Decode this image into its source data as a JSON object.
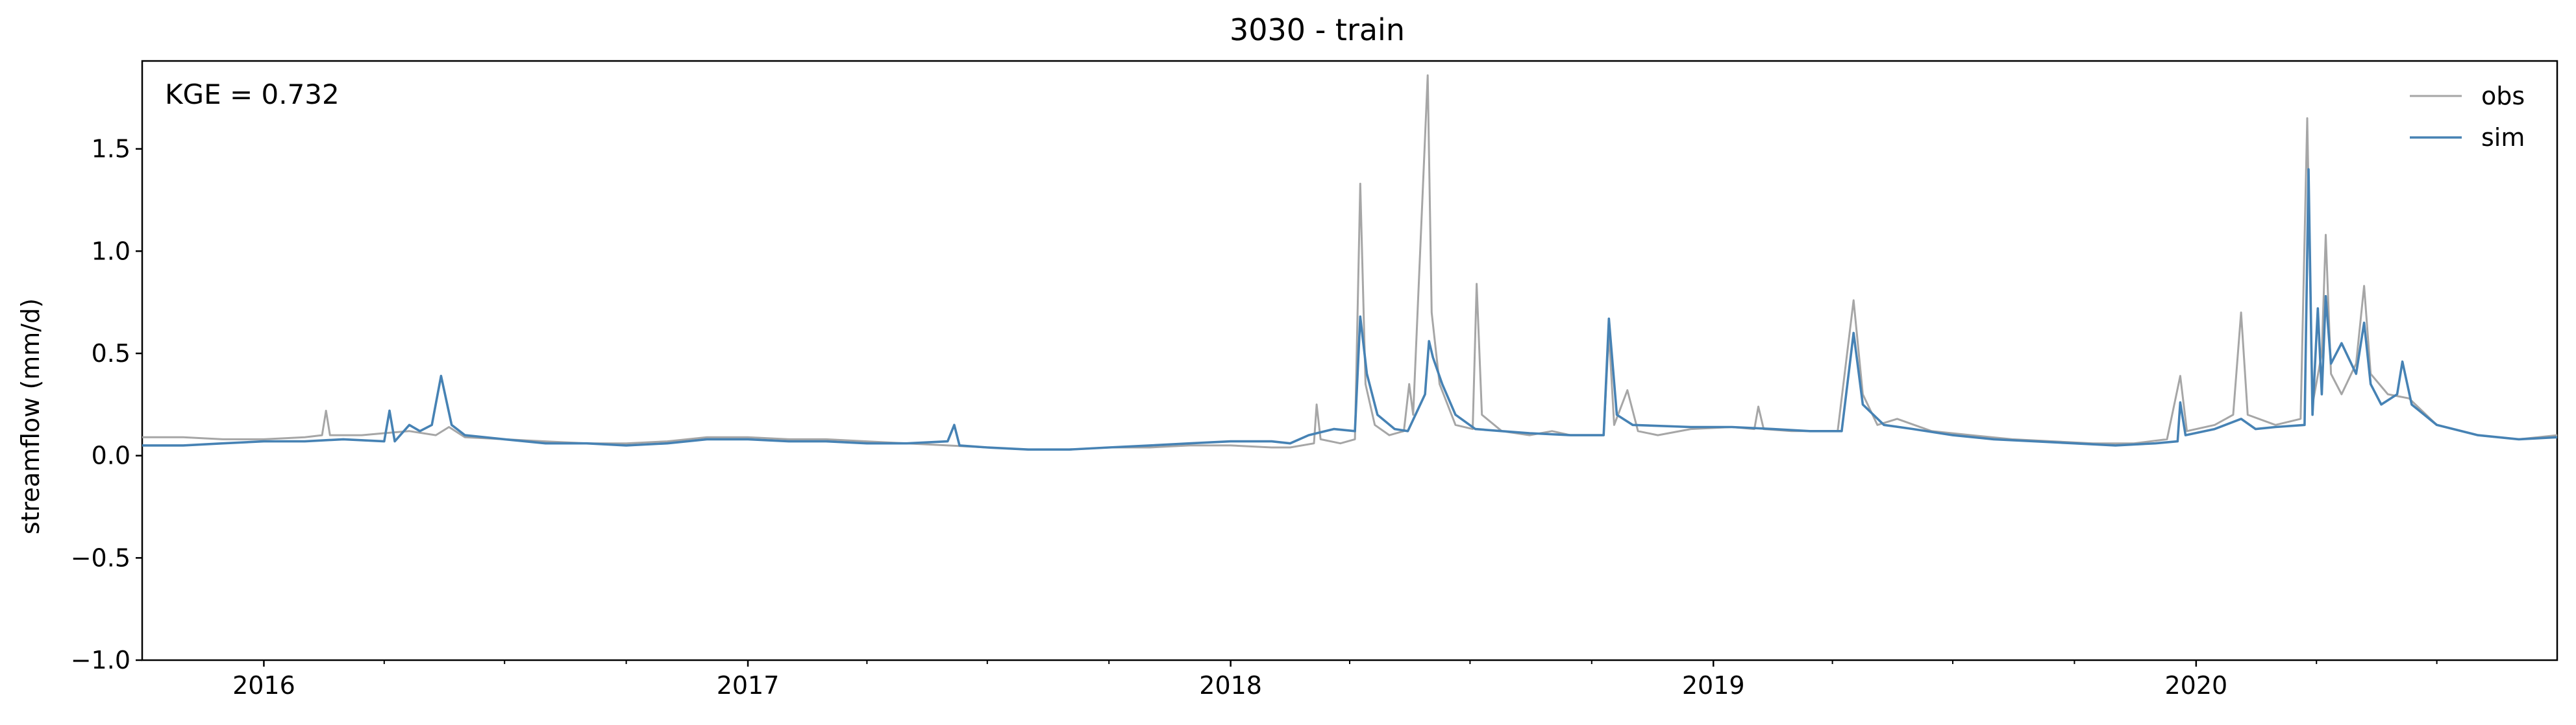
{
  "chart_data": {
    "type": "line",
    "title": "3030 - train",
    "xlabel": "",
    "ylabel": "streamflow (mm/d)",
    "annotation": "KGE = 0.732",
    "xlim": [
      "2015-10-01",
      "2020-09-30"
    ],
    "ylim": [
      -1.0,
      1.93
    ],
    "yticks": [
      -1.0,
      -0.5,
      0.0,
      0.5,
      1.0,
      1.5
    ],
    "ytick_labels": [
      "−1.0",
      "−0.5",
      "0.0",
      "0.5",
      "1.0",
      "1.5"
    ],
    "xticks": [
      "2016-01-01",
      "2017-01-01",
      "2018-01-01",
      "2019-01-01",
      "2020-01-01"
    ],
    "xtick_labels": [
      "2016",
      "2017",
      "2018",
      "2019",
      "2020"
    ],
    "grid": false,
    "legend_position": "top-right",
    "series": [
      {
        "name": "obs",
        "color": "#a6a6a6",
        "points": [
          [
            "2015-10-01",
            0.09
          ],
          [
            "2015-11-01",
            0.09
          ],
          [
            "2015-12-01",
            0.08
          ],
          [
            "2016-01-01",
            0.08
          ],
          [
            "2016-02-01",
            0.09
          ],
          [
            "2016-02-14",
            0.1
          ],
          [
            "2016-02-17",
            0.22
          ],
          [
            "2016-02-20",
            0.1
          ],
          [
            "2016-03-15",
            0.1
          ],
          [
            "2016-04-01",
            0.11
          ],
          [
            "2016-04-20",
            0.12
          ],
          [
            "2016-05-10",
            0.1
          ],
          [
            "2016-05-20",
            0.14
          ],
          [
            "2016-06-01",
            0.09
          ],
          [
            "2016-07-01",
            0.08
          ],
          [
            "2016-08-01",
            0.07
          ],
          [
            "2016-09-01",
            0.06
          ],
          [
            "2016-10-01",
            0.06
          ],
          [
            "2016-11-01",
            0.07
          ],
          [
            "2016-12-01",
            0.09
          ],
          [
            "2017-01-01",
            0.09
          ],
          [
            "2017-02-01",
            0.08
          ],
          [
            "2017-03-01",
            0.08
          ],
          [
            "2017-04-01",
            0.07
          ],
          [
            "2017-05-01",
            0.06
          ],
          [
            "2017-06-01",
            0.05
          ],
          [
            "2017-07-01",
            0.04
          ],
          [
            "2017-08-01",
            0.03
          ],
          [
            "2017-09-01",
            0.03
          ],
          [
            "2017-10-01",
            0.04
          ],
          [
            "2017-11-01",
            0.04
          ],
          [
            "2017-12-01",
            0.05
          ],
          [
            "2018-01-01",
            0.05
          ],
          [
            "2018-02-01",
            0.04
          ],
          [
            "2018-02-15",
            0.04
          ],
          [
            "2018-03-05",
            0.06
          ],
          [
            "2018-03-07",
            0.25
          ],
          [
            "2018-03-10",
            0.08
          ],
          [
            "2018-03-25",
            0.06
          ],
          [
            "2018-04-05",
            0.08
          ],
          [
            "2018-04-09",
            1.33
          ],
          [
            "2018-04-13",
            0.35
          ],
          [
            "2018-04-20",
            0.15
          ],
          [
            "2018-05-01",
            0.1
          ],
          [
            "2018-05-12",
            0.12
          ],
          [
            "2018-05-16",
            0.35
          ],
          [
            "2018-05-19",
            0.2
          ],
          [
            "2018-05-30",
            1.86
          ],
          [
            "2018-06-02",
            0.7
          ],
          [
            "2018-06-08",
            0.35
          ],
          [
            "2018-06-20",
            0.15
          ],
          [
            "2018-07-03",
            0.13
          ],
          [
            "2018-07-06",
            0.84
          ],
          [
            "2018-07-10",
            0.2
          ],
          [
            "2018-07-25",
            0.12
          ],
          [
            "2018-08-15",
            0.1
          ],
          [
            "2018-09-01",
            0.12
          ],
          [
            "2018-09-15",
            0.1
          ],
          [
            "2018-10-10",
            0.1
          ],
          [
            "2018-10-14",
            0.6
          ],
          [
            "2018-10-18",
            0.15
          ],
          [
            "2018-10-28",
            0.32
          ],
          [
            "2018-11-05",
            0.12
          ],
          [
            "2018-11-20",
            0.1
          ],
          [
            "2018-12-15",
            0.13
          ],
          [
            "2019-01-15",
            0.14
          ],
          [
            "2019-02-01",
            0.13
          ],
          [
            "2019-02-04",
            0.24
          ],
          [
            "2019-02-08",
            0.13
          ],
          [
            "2019-03-01",
            0.12
          ],
          [
            "2019-04-05",
            0.12
          ],
          [
            "2019-04-17",
            0.76
          ],
          [
            "2019-04-24",
            0.3
          ],
          [
            "2019-05-05",
            0.15
          ],
          [
            "2019-05-20",
            0.18
          ],
          [
            "2019-06-15",
            0.12
          ],
          [
            "2019-07-15",
            0.1
          ],
          [
            "2019-08-15",
            0.08
          ],
          [
            "2019-09-15",
            0.07
          ],
          [
            "2019-10-15",
            0.06
          ],
          [
            "2019-11-15",
            0.06
          ],
          [
            "2019-12-10",
            0.08
          ],
          [
            "2019-12-20",
            0.39
          ],
          [
            "2019-12-25",
            0.12
          ],
          [
            "2020-01-15",
            0.15
          ],
          [
            "2020-01-29",
            0.2
          ],
          [
            "2020-02-04",
            0.7
          ],
          [
            "2020-02-09",
            0.2
          ],
          [
            "2020-03-01",
            0.15
          ],
          [
            "2020-03-20",
            0.18
          ],
          [
            "2020-03-25",
            1.65
          ],
          [
            "2020-03-29",
            0.25
          ],
          [
            "2020-04-05",
            0.5
          ],
          [
            "2020-04-08",
            1.08
          ],
          [
            "2020-04-12",
            0.4
          ],
          [
            "2020-04-20",
            0.3
          ],
          [
            "2020-05-01",
            0.45
          ],
          [
            "2020-05-07",
            0.83
          ],
          [
            "2020-05-12",
            0.4
          ],
          [
            "2020-05-25",
            0.3
          ],
          [
            "2020-06-10",
            0.28
          ],
          [
            "2020-07-01",
            0.15
          ],
          [
            "2020-08-01",
            0.1
          ],
          [
            "2020-09-01",
            0.08
          ],
          [
            "2020-09-30",
            0.1
          ]
        ]
      },
      {
        "name": "sim",
        "color": "#4682b4",
        "points": [
          [
            "2015-10-01",
            0.05
          ],
          [
            "2015-11-01",
            0.05
          ],
          [
            "2015-12-01",
            0.06
          ],
          [
            "2016-01-01",
            0.07
          ],
          [
            "2016-02-01",
            0.07
          ],
          [
            "2016-03-01",
            0.08
          ],
          [
            "2016-04-01",
            0.07
          ],
          [
            "2016-04-05",
            0.22
          ],
          [
            "2016-04-09",
            0.07
          ],
          [
            "2016-04-20",
            0.15
          ],
          [
            "2016-04-28",
            0.12
          ],
          [
            "2016-05-07",
            0.15
          ],
          [
            "2016-05-14",
            0.39
          ],
          [
            "2016-05-22",
            0.15
          ],
          [
            "2016-06-01",
            0.1
          ],
          [
            "2016-07-01",
            0.08
          ],
          [
            "2016-08-01",
            0.06
          ],
          [
            "2016-09-01",
            0.06
          ],
          [
            "2016-10-01",
            0.05
          ],
          [
            "2016-11-01",
            0.06
          ],
          [
            "2016-12-01",
            0.08
          ],
          [
            "2017-01-01",
            0.08
          ],
          [
            "2017-02-01",
            0.07
          ],
          [
            "2017-03-01",
            0.07
          ],
          [
            "2017-04-01",
            0.06
          ],
          [
            "2017-05-01",
            0.06
          ],
          [
            "2017-06-01",
            0.07
          ],
          [
            "2017-06-06",
            0.15
          ],
          [
            "2017-06-10",
            0.05
          ],
          [
            "2017-07-01",
            0.04
          ],
          [
            "2017-08-01",
            0.03
          ],
          [
            "2017-09-01",
            0.03
          ],
          [
            "2017-10-01",
            0.04
          ],
          [
            "2017-11-01",
            0.05
          ],
          [
            "2017-12-01",
            0.06
          ],
          [
            "2018-01-01",
            0.07
          ],
          [
            "2018-02-01",
            0.07
          ],
          [
            "2018-02-15",
            0.06
          ],
          [
            "2018-03-01",
            0.1
          ],
          [
            "2018-03-20",
            0.13
          ],
          [
            "2018-04-05",
            0.12
          ],
          [
            "2018-04-09",
            0.68
          ],
          [
            "2018-04-14",
            0.4
          ],
          [
            "2018-04-22",
            0.2
          ],
          [
            "2018-05-05",
            0.13
          ],
          [
            "2018-05-15",
            0.12
          ],
          [
            "2018-05-28",
            0.3
          ],
          [
            "2018-05-31",
            0.56
          ],
          [
            "2018-06-03",
            0.48
          ],
          [
            "2018-06-10",
            0.35
          ],
          [
            "2018-06-20",
            0.2
          ],
          [
            "2018-07-05",
            0.13
          ],
          [
            "2018-07-25",
            0.12
          ],
          [
            "2018-08-15",
            0.11
          ],
          [
            "2018-09-15",
            0.1
          ],
          [
            "2018-10-10",
            0.1
          ],
          [
            "2018-10-14",
            0.67
          ],
          [
            "2018-10-20",
            0.2
          ],
          [
            "2018-11-01",
            0.15
          ],
          [
            "2018-12-15",
            0.14
          ],
          [
            "2019-01-15",
            0.14
          ],
          [
            "2019-02-15",
            0.13
          ],
          [
            "2019-03-15",
            0.12
          ],
          [
            "2019-04-08",
            0.12
          ],
          [
            "2019-04-17",
            0.6
          ],
          [
            "2019-04-24",
            0.25
          ],
          [
            "2019-05-10",
            0.15
          ],
          [
            "2019-06-01",
            0.13
          ],
          [
            "2019-07-01",
            0.1
          ],
          [
            "2019-08-01",
            0.08
          ],
          [
            "2019-09-01",
            0.07
          ],
          [
            "2019-10-01",
            0.06
          ],
          [
            "2019-11-01",
            0.05
          ],
          [
            "2019-12-01",
            0.06
          ],
          [
            "2019-12-18",
            0.07
          ],
          [
            "2019-12-20",
            0.26
          ],
          [
            "2019-12-24",
            0.1
          ],
          [
            "2020-01-15",
            0.13
          ],
          [
            "2020-02-04",
            0.18
          ],
          [
            "2020-02-15",
            0.13
          ],
          [
            "2020-03-01",
            0.14
          ],
          [
            "2020-03-23",
            0.15
          ],
          [
            "2020-03-26",
            1.4
          ],
          [
            "2020-03-29",
            0.2
          ],
          [
            "2020-04-02",
            0.72
          ],
          [
            "2020-04-05",
            0.3
          ],
          [
            "2020-04-08",
            0.78
          ],
          [
            "2020-04-12",
            0.45
          ],
          [
            "2020-04-20",
            0.55
          ],
          [
            "2020-05-01",
            0.4
          ],
          [
            "2020-05-07",
            0.65
          ],
          [
            "2020-05-12",
            0.35
          ],
          [
            "2020-05-20",
            0.25
          ],
          [
            "2020-06-01",
            0.3
          ],
          [
            "2020-06-05",
            0.46
          ],
          [
            "2020-06-12",
            0.25
          ],
          [
            "2020-07-01",
            0.15
          ],
          [
            "2020-08-01",
            0.1
          ],
          [
            "2020-09-01",
            0.08
          ],
          [
            "2020-09-30",
            0.09
          ]
        ]
      }
    ]
  }
}
